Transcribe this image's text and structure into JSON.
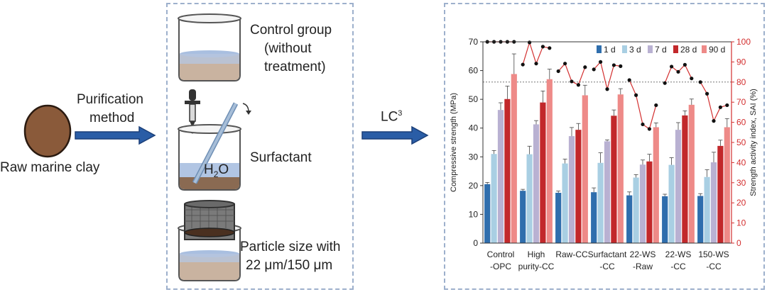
{
  "left": {
    "clay_label": "Raw marine clay",
    "arrow1_label": [
      "Purification",
      "method"
    ],
    "clay_color": "#8a5a3a"
  },
  "methods": {
    "control_label": [
      "Control group",
      "(without",
      "treatment)"
    ],
    "surfactant_label": "Surfactant",
    "water_label": "H",
    "water_sub": "2",
    "water_tail": "O",
    "particle_label": [
      "Particle size with",
      "22 μm/150 μm"
    ]
  },
  "arrow2_label": "LC",
  "arrow2_sup": "3",
  "colors": {
    "frame": "#9db0cc",
    "arrow": "#2a5da6",
    "sai_line": "#d32f2f"
  },
  "chart_data": {
    "type": "bar",
    "ylabel": "Compressive strength (MPa)",
    "ylabel_right": "Strength activity index, SAI (%)",
    "ylim": [
      0,
      70
    ],
    "yticks": [
      0,
      10,
      20,
      30,
      40,
      50,
      60,
      70
    ],
    "ylim_right": [
      0,
      100
    ],
    "yticks_right": [
      0,
      10,
      20,
      30,
      40,
      50,
      60,
      70,
      80,
      90,
      100
    ],
    "reference_line_sai": 80,
    "categories": [
      [
        "Control",
        "-OPC"
      ],
      [
        "High",
        "purity-CC"
      ],
      [
        "Raw-CC"
      ],
      [
        "Surfactant",
        "-CC"
      ],
      [
        "22-WS",
        "-Raw"
      ],
      [
        "22-WS",
        "-CC"
      ],
      [
        "150-WS",
        "-CC"
      ]
    ],
    "series": [
      {
        "name": "1 d",
        "color": "#2f6ead",
        "values": [
          20.5,
          18.2,
          17.5,
          17.7,
          16.6,
          16.3,
          16.4
        ],
        "err": [
          0.6,
          0.5,
          0.6,
          1.5,
          1.2,
          0.7,
          0.8
        ]
      },
      {
        "name": "3 d",
        "color": "#a9cfe3",
        "values": [
          31.0,
          30.9,
          27.7,
          27.9,
          22.8,
          27.2,
          23.0
        ],
        "err": [
          1.2,
          2.8,
          1.5,
          3.5,
          1.0,
          2.5,
          2.5
        ]
      },
      {
        "name": "7 d",
        "color": "#b9b1d2",
        "values": [
          46.3,
          41.3,
          37.2,
          35.4,
          27.3,
          39.4,
          28.1
        ],
        "err": [
          2.5,
          1.3,
          3.0,
          0.5,
          1.6,
          2.5,
          3.5
        ]
      },
      {
        "name": "28 d",
        "color": "#c2282b",
        "values": [
          50.1,
          48.9,
          39.4,
          44.3,
          28.4,
          44.4,
          33.8
        ],
        "err": [
          4.5,
          4.0,
          2.2,
          2.0,
          2.5,
          1.6,
          2.0
        ]
      },
      {
        "name": "90 d",
        "color": "#ee8a88",
        "values": [
          58.8,
          57.0,
          51.4,
          51.7,
          40.3,
          48.1,
          40.3
        ],
        "err": [
          7.0,
          3.5,
          3.5,
          2.0,
          1.5,
          2.0,
          3.0
        ]
      }
    ],
    "sai": [
      [
        100,
        100,
        100,
        100,
        100
      ],
      [
        88.7,
        99.7,
        89.2,
        97.6,
        96.9
      ],
      [
        85.4,
        89.2,
        80.3,
        78.6,
        87.4
      ],
      [
        86.3,
        90.0,
        76.5,
        88.4,
        87.9
      ],
      [
        81.0,
        73.5,
        59.0,
        56.7,
        68.5
      ],
      [
        79.5,
        87.7,
        85.1,
        88.6,
        81.8
      ],
      [
        80.0,
        74.2,
        60.7,
        67.5,
        68.5
      ]
    ]
  }
}
